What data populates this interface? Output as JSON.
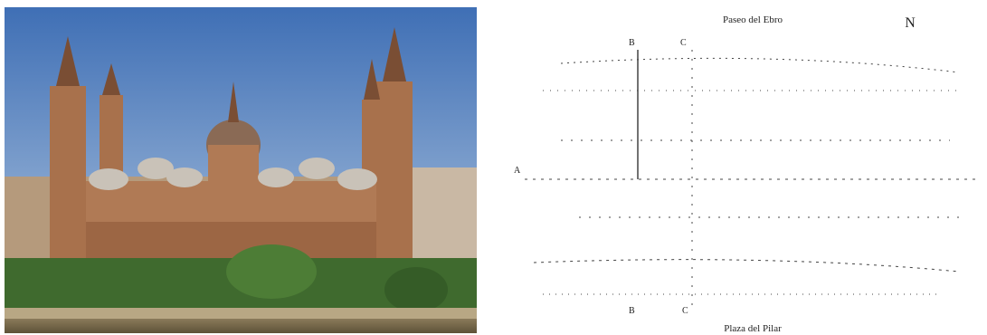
{
  "plan": {
    "top_label": "Paseo del Ebro",
    "bottom_label": "Plaza del Pilar",
    "north": "N",
    "section_labels": [
      "A",
      "B",
      "C",
      "B",
      "C"
    ]
  }
}
